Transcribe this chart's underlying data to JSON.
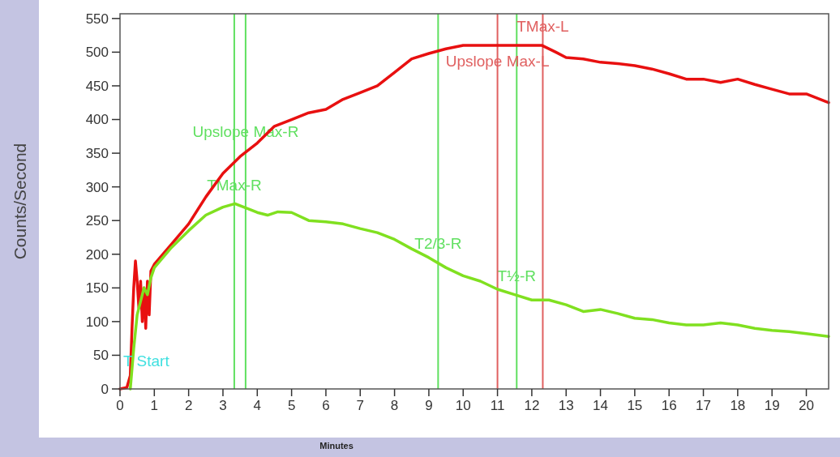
{
  "chart_data": {
    "type": "line",
    "xlabel": "Minutes",
    "ylabel": "Counts/Second",
    "x": [
      0,
      0.2,
      0.3,
      0.35,
      0.4,
      0.45,
      0.5,
      0.55,
      0.6,
      0.65,
      0.7,
      0.75,
      0.8,
      0.85,
      0.9,
      1.0,
      1.5,
      2,
      2.5,
      3,
      3.5,
      4,
      4.5,
      5,
      5.5,
      6,
      6.5,
      7,
      7.5,
      8,
      8.5,
      9,
      9.5,
      10,
      10.5,
      11,
      11.5,
      12.3,
      12.7,
      13,
      13.5,
      14,
      14.5,
      15,
      15.5,
      16,
      16.5,
      17,
      17.5,
      18,
      18.5,
      19,
      19.5,
      20,
      20.3,
      20.65
    ],
    "series": [
      {
        "color": "#e81010",
        "values": [
          0,
          2,
          20,
          90,
          150,
          190,
          160,
          120,
          160,
          100,
          150,
          90,
          160,
          110,
          175,
          185,
          215,
          245,
          285,
          320,
          345,
          365,
          390,
          400,
          410,
          415,
          430,
          440,
          450,
          470,
          490,
          498,
          505,
          510,
          510,
          510,
          510,
          510,
          500,
          492,
          490,
          485,
          483,
          480,
          475,
          468,
          460,
          460,
          455,
          460,
          452,
          445,
          438,
          438,
          432,
          425
        ]
      },
      {
        "color": "#80e020",
        "x": [
          0.3,
          0.4,
          0.5,
          0.6,
          0.7,
          0.8,
          0.9,
          1,
          1.5,
          2,
          2.5,
          3,
          3.35,
          3.7,
          4,
          4.3,
          4.6,
          5,
          5.5,
          6,
          6.5,
          7,
          7.5,
          8,
          8.5,
          9,
          9.5,
          10,
          10.5,
          11,
          11.5,
          12,
          12.5,
          13,
          13.5,
          14,
          14.5,
          15,
          15.5,
          16,
          16.5,
          17,
          17.5,
          18,
          18.5,
          19,
          19.5,
          20,
          20.65
        ],
        "values": [
          0,
          60,
          110,
          130,
          150,
          140,
          165,
          180,
          210,
          235,
          258,
          270,
          275,
          268,
          262,
          258,
          263,
          262,
          250,
          248,
          245,
          238,
          232,
          222,
          208,
          195,
          180,
          168,
          160,
          148,
          140,
          132,
          132,
          125,
          115,
          118,
          112,
          105,
          103,
          98,
          95,
          95,
          98,
          95,
          90,
          87,
          85,
          82,
          78
        ]
      }
    ],
    "xlim": [
      0,
      20.65
    ],
    "xticks": [
      0,
      1,
      2,
      3,
      4,
      5,
      6,
      7,
      8,
      9,
      10,
      11,
      12,
      13,
      14,
      15,
      16,
      17,
      18,
      19,
      20
    ],
    "ylim": [
      0,
      557
    ],
    "yticks": [
      0,
      50,
      100,
      150,
      200,
      250,
      300,
      350,
      400,
      450,
      500,
      550
    ],
    "grid": false,
    "marker": "none",
    "line_style": "solid",
    "ref_lines": [
      {
        "axis": "x",
        "value": 3.33,
        "color": "#60e060",
        "label": "TMax-R"
      },
      {
        "axis": "x",
        "value": 3.66,
        "color": "#60e060",
        "label": "Upslope Max-R"
      },
      {
        "axis": "x",
        "value": 9.27,
        "color": "#60e060",
        "label": "T2/3-R"
      },
      {
        "axis": "x",
        "value": 11.56,
        "color": "#60e060",
        "label": "T½-R"
      },
      {
        "axis": "x",
        "value": 11.0,
        "color": "#e06060",
        "label": "Upslope Max-L"
      },
      {
        "axis": "x",
        "value": 12.32,
        "color": "#e06060",
        "label": "TMax-L"
      }
    ],
    "annotations": [
      "T Start"
    ]
  }
}
